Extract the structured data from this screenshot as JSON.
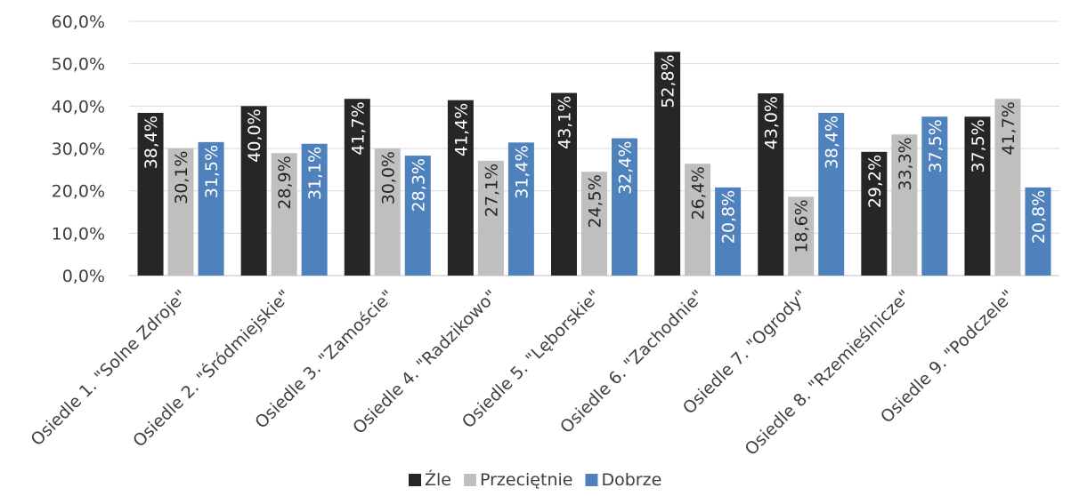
{
  "chart_data": {
    "type": "bar",
    "categories": [
      "Osiedle 1. \"Solne Zdroje\"",
      "Osiedle 2. \"Śródmiejskie\"",
      "Osiedle 3. \"Zamoście\"",
      "Osiedle 4. \"Radzikowo\"",
      "Osiedle 5. \"Lęborskie\"",
      "Osiedle 6. \"Zachodnie\"",
      "Osiedle 7. \"Ogrody\"",
      "Osiedle 8. \"Rzemieślnicze\"",
      "Osiedle 9. \"Podczele\""
    ],
    "series": [
      {
        "name": "Źle",
        "color": "#262626",
        "label_color": "#ffffff",
        "values": [
          38.4,
          40.0,
          41.7,
          41.4,
          43.1,
          52.8,
          43.0,
          29.2,
          37.5
        ],
        "labels": [
          "38,4%",
          "40,0%",
          "41,7%",
          "41,4%",
          "43,1%",
          "52,8%",
          "43,0%",
          "29,2%",
          "37,5%"
        ]
      },
      {
        "name": "Przeciętnie",
        "color": "#bfbfbf",
        "label_color": "#262626",
        "values": [
          30.1,
          28.9,
          30.0,
          27.1,
          24.5,
          26.4,
          18.6,
          33.3,
          41.7
        ],
        "labels": [
          "30,1%",
          "28,9%",
          "30,0%",
          "27,1%",
          "24,5%",
          "26,4%",
          "18,6%",
          "33,3%",
          "41,7%"
        ]
      },
      {
        "name": "Dobrze",
        "color": "#4f81bd",
        "label_color": "#ffffff",
        "values": [
          31.5,
          31.1,
          28.3,
          31.4,
          32.4,
          20.8,
          38.4,
          37.5,
          20.8
        ],
        "labels": [
          "31,5%",
          "31,1%",
          "28,3%",
          "31,4%",
          "32,4%",
          "20,8%",
          "38,4%",
          "37,5%",
          "20,8%"
        ]
      }
    ],
    "ylim": [
      0,
      60
    ],
    "yticks": [
      "0,0%",
      "10,0%",
      "20,0%",
      "30,0%",
      "40,0%",
      "50,0%",
      "60,0%"
    ],
    "grid": true,
    "legend_position": "bottom"
  }
}
